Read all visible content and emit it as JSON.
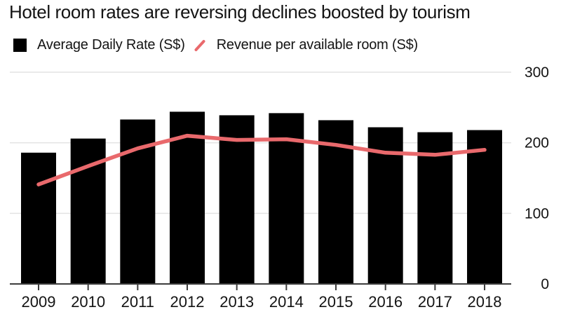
{
  "title": "Hotel room rates are reversing declines boosted by tourism",
  "legend": [
    {
      "label": "Average Daily Rate (S$)",
      "swatch": "black-square"
    },
    {
      "label": "Revenue per available room (S$)",
      "swatch": "red-slash"
    }
  ],
  "chart_data": {
    "type": "bar",
    "title": "Hotel room rates are reversing declines boosted by tourism",
    "categories": [
      "2009",
      "2010",
      "2011",
      "2012",
      "2013",
      "2014",
      "2015",
      "2016",
      "2017",
      "2018"
    ],
    "series": [
      {
        "name": "Average Daily Rate (S$)",
        "type": "bar",
        "color": "#000000",
        "values": [
          186,
          206,
          233,
          244,
          239,
          242,
          232,
          222,
          215,
          218
        ]
      },
      {
        "name": "Revenue per available room (S$)",
        "type": "line",
        "color": "#e9696c",
        "values": [
          141,
          167,
          192,
          210,
          204,
          205,
          197,
          186,
          183,
          190
        ]
      }
    ],
    "xlabel": "",
    "ylabel": "",
    "ylim": [
      0,
      300
    ],
    "yticks": [
      0,
      100,
      200,
      300
    ],
    "grid": true,
    "legend_position": "top",
    "colors": {
      "grid": "#e3e3e3",
      "axis": "#3d3d3d",
      "text": "#131313",
      "background": "#ffffff"
    }
  }
}
